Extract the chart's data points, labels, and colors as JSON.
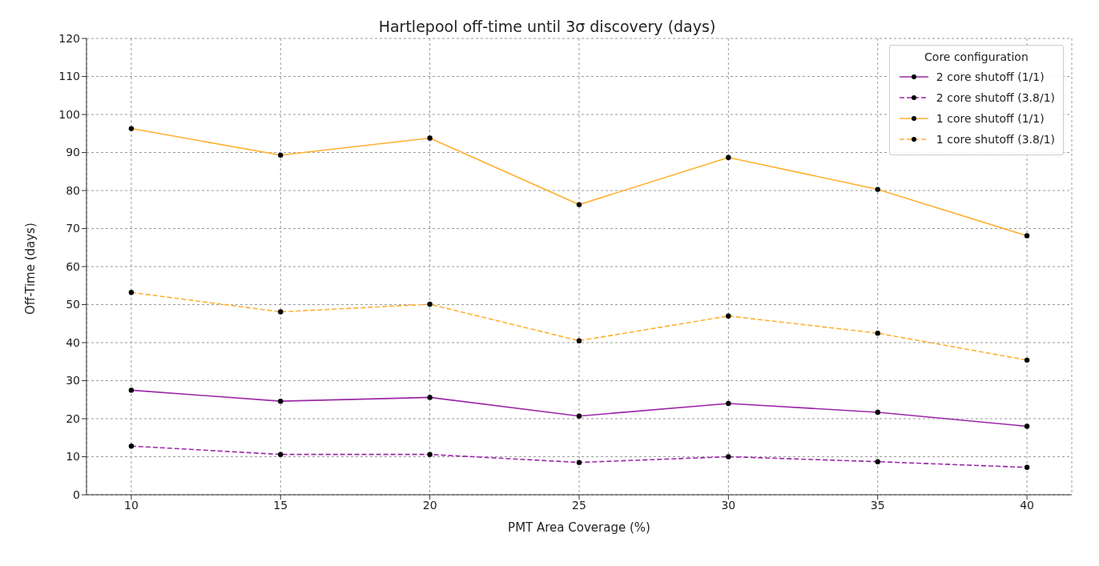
{
  "chart_data": {
    "type": "line",
    "title": "Hartlepool off-time until 3σ discovery (days)",
    "xlabel": "PMT Area Coverage (%)",
    "ylabel": "Off-Time (days)",
    "legend_title": "Core configuration",
    "x": [
      10,
      15,
      20,
      25,
      30,
      35,
      40
    ],
    "series": [
      {
        "name": "2 core shutoff (1/1)",
        "color": "#9c27a8",
        "line_style": "solid",
        "values": [
          27.5,
          24.6,
          25.6,
          20.7,
          24.0,
          21.7,
          18.0
        ]
      },
      {
        "name": "2 core shutoff (3.8/1)",
        "color": "#9c27a8",
        "line_style": "dashed",
        "values": [
          12.8,
          10.6,
          10.6,
          8.5,
          10.0,
          8.7,
          7.2
        ]
      },
      {
        "name": "1 core shutoff (1/1)",
        "color": "#ffb030",
        "line_style": "solid",
        "values": [
          96.3,
          89.3,
          93.8,
          76.3,
          88.7,
          80.3,
          68.1
        ]
      },
      {
        "name": "1 core shutoff (3.8/1)",
        "color": "#ffb030",
        "line_style": "dashed",
        "values": [
          53.2,
          48.1,
          50.1,
          40.5,
          47.0,
          42.5,
          35.4
        ]
      }
    ],
    "xlim": [
      8.5,
      41.5
    ],
    "xticks": [
      10,
      15,
      20,
      25,
      30,
      35,
      40
    ],
    "ylim": [
      0,
      120
    ],
    "yticks": [
      0,
      10,
      20,
      30,
      40,
      50,
      60,
      70,
      80,
      90,
      100,
      110,
      120
    ],
    "grid": true,
    "legend": "top right",
    "marker": "circle"
  }
}
